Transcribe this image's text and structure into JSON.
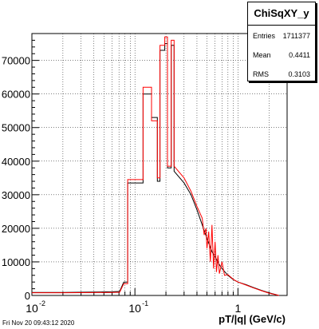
{
  "stats": {
    "title": "ChiSqXY_y",
    "rows": [
      {
        "key": "Entries",
        "value": "1711377"
      },
      {
        "key": "Mean",
        "value": "0.4411"
      },
      {
        "key": "RMS",
        "value": "0.3103"
      }
    ]
  },
  "footer": "Fri Nov 20 09:43:12 2020",
  "colors": {
    "black_series": "#000000",
    "red_series": "#ff0000",
    "grid": "#000000"
  },
  "chart_data": {
    "type": "line",
    "title": "",
    "xlabel": "pT/|q| (GeV/c)",
    "ylabel": "",
    "xscale": "log",
    "xlim": [
      0.01,
      3.0
    ],
    "ylim": [
      0,
      78000
    ],
    "x_ticks": [
      0.01,
      0.1,
      1
    ],
    "x_tick_labels": [
      "10",
      "10",
      "1"
    ],
    "x_tick_exponents": [
      "-2",
      "-1",
      ""
    ],
    "y_ticks": [
      0,
      10000,
      20000,
      30000,
      40000,
      50000,
      60000,
      70000
    ],
    "y_tick_labels": [
      "0",
      "10000",
      "20000",
      "30000",
      "40000",
      "50000",
      "60000",
      "70000"
    ],
    "grid": true,
    "series": [
      {
        "color": "#000000",
        "points": [
          [
            0.01,
            900
          ],
          [
            0.02,
            900
          ],
          [
            0.04,
            1000
          ],
          [
            0.06,
            1100
          ],
          [
            0.071,
            1200
          ],
          [
            0.078,
            4000
          ],
          [
            0.085,
            4000
          ],
          [
            0.085,
            33500
          ],
          [
            0.12,
            33500
          ],
          [
            0.12,
            60000
          ],
          [
            0.145,
            60000
          ],
          [
            0.145,
            53000
          ],
          [
            0.165,
            53000
          ],
          [
            0.165,
            34000
          ],
          [
            0.175,
            34000
          ],
          [
            0.175,
            73000
          ],
          [
            0.195,
            73000
          ],
          [
            0.195,
            75000
          ],
          [
            0.207,
            75000
          ],
          [
            0.207,
            38000
          ],
          [
            0.225,
            38000
          ],
          [
            0.225,
            74500
          ],
          [
            0.24,
            74500
          ],
          [
            0.24,
            37000
          ],
          [
            0.3,
            33500
          ],
          [
            0.35,
            30000
          ],
          [
            0.4,
            25500
          ],
          [
            0.45,
            21000
          ],
          [
            0.5,
            17000
          ],
          [
            0.53,
            15000
          ],
          [
            0.56,
            13000
          ],
          [
            0.6,
            11500
          ],
          [
            0.65,
            9500
          ],
          [
            0.7,
            8000
          ],
          [
            0.8,
            6000
          ],
          [
            0.9,
            4700
          ],
          [
            1.0,
            4000
          ],
          [
            1.2,
            3200
          ],
          [
            1.4,
            2400
          ],
          [
            1.7,
            1500
          ],
          [
            2.0,
            800
          ],
          [
            2.3,
            300
          ],
          [
            2.5,
            0
          ]
        ]
      },
      {
        "color": "#ff0000",
        "points": [
          [
            0.01,
            800
          ],
          [
            0.02,
            800
          ],
          [
            0.04,
            850
          ],
          [
            0.06,
            900
          ],
          [
            0.071,
            950
          ],
          [
            0.078,
            3500
          ],
          [
            0.085,
            3500
          ],
          [
            0.085,
            34500
          ],
          [
            0.12,
            34500
          ],
          [
            0.12,
            62000
          ],
          [
            0.145,
            62000
          ],
          [
            0.145,
            52000
          ],
          [
            0.165,
            52000
          ],
          [
            0.165,
            35000
          ],
          [
            0.175,
            35000
          ],
          [
            0.175,
            74500
          ],
          [
            0.195,
            74500
          ],
          [
            0.195,
            77000
          ],
          [
            0.207,
            77000
          ],
          [
            0.207,
            38500
          ],
          [
            0.225,
            38500
          ],
          [
            0.225,
            76000
          ],
          [
            0.24,
            76000
          ],
          [
            0.24,
            38500
          ],
          [
            0.3,
            35000
          ],
          [
            0.35,
            31000
          ],
          [
            0.4,
            26500
          ],
          [
            0.45,
            23000
          ],
          [
            0.47,
            18000
          ],
          [
            0.49,
            20000
          ],
          [
            0.5,
            14000
          ],
          [
            0.52,
            19000
          ],
          [
            0.54,
            10000
          ],
          [
            0.56,
            21000
          ],
          [
            0.58,
            8000
          ],
          [
            0.6,
            16000
          ],
          [
            0.62,
            7000
          ],
          [
            0.64,
            12000
          ],
          [
            0.66,
            6500
          ],
          [
            0.7,
            10000
          ],
          [
            0.74,
            6000
          ],
          [
            0.8,
            6200
          ],
          [
            0.9,
            4800
          ],
          [
            1.0,
            4000
          ],
          [
            1.2,
            3100
          ],
          [
            1.4,
            2300
          ],
          [
            1.7,
            1400
          ],
          [
            2.0,
            700
          ],
          [
            2.3,
            250
          ],
          [
            2.5,
            0
          ]
        ]
      }
    ]
  }
}
